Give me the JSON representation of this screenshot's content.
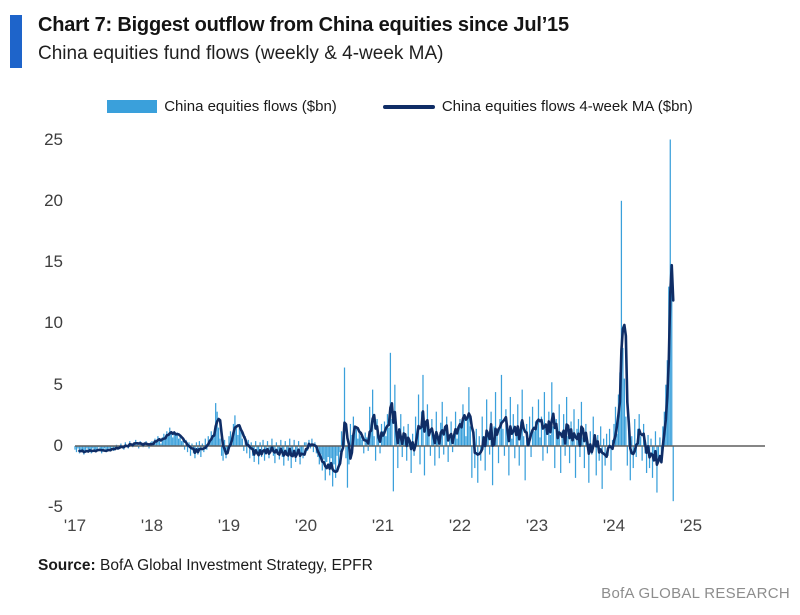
{
  "header": {
    "title": "Chart 7: Biggest outflow from China equities since Jul’15",
    "subtitle": "China equities fund flows (weekly & 4-week MA)"
  },
  "legend": {
    "bar_label": "China equities flows ($bn)",
    "line_label": "China equities flows 4-week MA ($bn)"
  },
  "footer": {
    "source_label": "Source:",
    "source_text": " BofA Global Investment Strategy, EPFR",
    "brand": "BofA GLOBAL RESEARCH"
  },
  "colors": {
    "accent_bar": "#1E64CA",
    "bars": "#3AA0DB",
    "ma_line": "#0F2D66",
    "zero_line": "#5f5f5f",
    "tick_text": "#464646",
    "brand_text": "#8d8d8d"
  },
  "chart_data": {
    "type": "bar",
    "title": "China equities fund flows (weekly & 4-week MA)",
    "xlabel": "",
    "ylabel": "$bn",
    "x_unit": "weeks, Jan 2017 - late Oct 2024",
    "x_tick_labels": [
      "'17",
      "'18",
      "'19",
      "'20",
      "'21",
      "'22",
      "'23",
      "'24",
      "'25"
    ],
    "y_ticks": [
      25,
      20,
      15,
      10,
      5,
      0,
      -5
    ],
    "ylim": [
      -5.5,
      26
    ],
    "grid": false,
    "legend_position": "top-center",
    "points_per_year": 52,
    "series": [
      {
        "name": "China equities flows ($bn)",
        "type": "bar",
        "color": "#3AA0DB",
        "values": [
          -0.3,
          -0.5,
          -0.2,
          -0.6,
          -0.4,
          -0.3,
          -0.7,
          -0.4,
          -0.2,
          -0.5,
          -0.3,
          -0.6,
          -0.2,
          -0.4,
          -0.5,
          -0.3,
          -0.1,
          -0.4,
          -0.6,
          -0.3,
          -0.2,
          -0.5,
          -0.4,
          -0.2,
          -0.3,
          -0.1,
          -0.4,
          -0.2,
          0.1,
          -0.3,
          -0.2,
          0.2,
          -0.1,
          -0.3,
          0.3,
          0.1,
          -0.2,
          0.4,
          0.2,
          -0.1,
          0.3,
          0.5,
          0.2,
          -0.2,
          0.4,
          0.3,
          -0.1,
          0.2,
          0.4,
          0.1,
          -0.2,
          0.3,
          0.4,
          0.2,
          0.6,
          0.3,
          0.8,
          0.5,
          0.2,
          0.7,
          1.0,
          0.6,
          1.2,
          0.8,
          1.5,
          1.0,
          0.7,
          1.2,
          0.9,
          1.1,
          0.6,
          0.8,
          0.4,
          0.6,
          -0.3,
          0.5,
          -0.5,
          0.3,
          -0.8,
          0.2,
          -0.6,
          -1.0,
          0.3,
          -0.7,
          0.4,
          -0.9,
          0.2,
          -0.5,
          0.6,
          -0.3,
          0.8,
          0.5,
          1.2,
          0.7,
          1.0,
          3.5,
          2.8,
          1.5,
          0.6,
          -0.8,
          -1.2,
          0.5,
          -1.0,
          -0.6,
          0.8,
          1.2,
          0.5,
          1.8,
          2.5,
          1.5,
          0.9,
          1.8,
          1.2,
          0.6,
          -0.4,
          0.8,
          -0.6,
          0.5,
          -1.0,
          0.3,
          -0.8,
          -1.3,
          0.4,
          -0.6,
          -1.5,
          0.3,
          -0.9,
          0.5,
          -1.2,
          -0.7,
          0.4,
          -1.0,
          -0.5,
          0.6,
          -0.8,
          -1.4,
          0.3,
          -0.6,
          -1.1,
          0.5,
          -0.9,
          -1.6,
          0.4,
          -0.7,
          -1.2,
          0.6,
          -1.8,
          -0.9,
          0.5,
          -1.3,
          -0.8,
          0.4,
          -1.5,
          -0.6,
          -1.0,
          0.3,
          0.3,
          -0.4,
          0.5,
          -0.2,
          0.6,
          -0.5,
          0.3,
          -0.6,
          -0.9,
          -1.5,
          -0.7,
          -2.0,
          -1.1,
          -2.8,
          -1.3,
          -0.9,
          -2.4,
          -1.0,
          -3.3,
          -1.5,
          -2.6,
          -0.8,
          -1.8,
          -0.5,
          1.2,
          0.5,
          6.4,
          -1.0,
          -3.4,
          -1.5,
          1.8,
          0.9,
          2.4,
          1.2,
          1.6,
          0.6,
          1.3,
          0.8,
          0.5,
          -0.6,
          1.1,
          0.7,
          -0.4,
          3.2,
          1.5,
          4.6,
          0.8,
          -1.2,
          2.2,
          1.0,
          -0.6,
          1.8,
          1.2,
          2.0,
          0.8,
          2.6,
          1.5,
          7.6,
          2.2,
          -3.7,
          5.0,
          1.4,
          -1.8,
          0.8,
          2.6,
          -0.9,
          1.6,
          0.5,
          -1.2,
          1.8,
          0.6,
          -2.2,
          1.0,
          -0.8,
          2.4,
          0.7,
          4.2,
          -1.5,
          2.8,
          5.8,
          -2.4,
          1.6,
          3.4,
          0.9,
          -0.8,
          2.2,
          1.1,
          -1.6,
          2.8,
          0.6,
          -1.0,
          1.9,
          3.6,
          -0.7,
          1.4,
          2.4,
          -1.3,
          0.8,
          2.0,
          -0.5,
          1.2,
          2.8,
          0.6,
          1.5,
          2.2,
          1.8,
          3.4,
          2.6,
          0.8,
          2.4,
          4.8,
          1.6,
          -2.6,
          0.6,
          -1.8,
          1.4,
          -3.0,
          0.8,
          -1.2,
          2.4,
          0.8,
          -2.0,
          3.8,
          1.2,
          -0.7,
          2.8,
          -3.2,
          1.6,
          4.4,
          0.9,
          -1.4,
          2.2,
          5.8,
          1.4,
          -0.8,
          3.0,
          1.8,
          -2.4,
          4.0,
          0.6,
          2.6,
          -1.0,
          1.4,
          3.4,
          -1.6,
          2.0,
          4.6,
          0.8,
          -2.8,
          1.8,
          0.5,
          2.4,
          -0.9,
          3.2,
          1.2,
          2.0,
          1.6,
          3.8,
          0.7,
          2.4,
          -1.2,
          4.4,
          1.4,
          -0.6,
          2.8,
          0.9,
          5.2,
          1.6,
          -1.8,
          2.2,
          0.6,
          3.4,
          -2.2,
          1.2,
          2.6,
          -0.8,
          4.0,
          0.8,
          -1.4,
          2.0,
          0.5,
          3.0,
          -2.6,
          1.4,
          2.2,
          -0.9,
          3.6,
          0.7,
          -1.8,
          1.8,
          0.5,
          -3.0,
          1.2,
          -0.7,
          2.4,
          0.6,
          -2.4,
          0.9,
          -1.2,
          1.6,
          -3.5,
          0.6,
          -1.6,
          1.0,
          -0.8,
          1.4,
          -2.0,
          0.5,
          1.8,
          3.2,
          1.0,
          4.2,
          6.0,
          20.0,
          8.0,
          5.5,
          2.4,
          -1.6,
          1.2,
          -2.8,
          0.8,
          -1.8,
          2.2,
          -0.9,
          1.4,
          2.6,
          0.8,
          -1.2,
          1.8,
          -0.6,
          -2.2,
          0.9,
          -1.8,
          0.6,
          -2.6,
          -0.9,
          1.2,
          -3.8,
          -1.4,
          0.7,
          -0.8,
          1.6,
          2.8,
          5.0,
          7.0,
          13.0,
          25.0,
          14.0,
          -4.5
        ]
      },
      {
        "name": "China equities flows 4-week MA ($bn)",
        "type": "line",
        "color": "#0F2D66",
        "derived_from": "4-week moving average of the weekly flows series",
        "ma_window": 4
      }
    ]
  }
}
